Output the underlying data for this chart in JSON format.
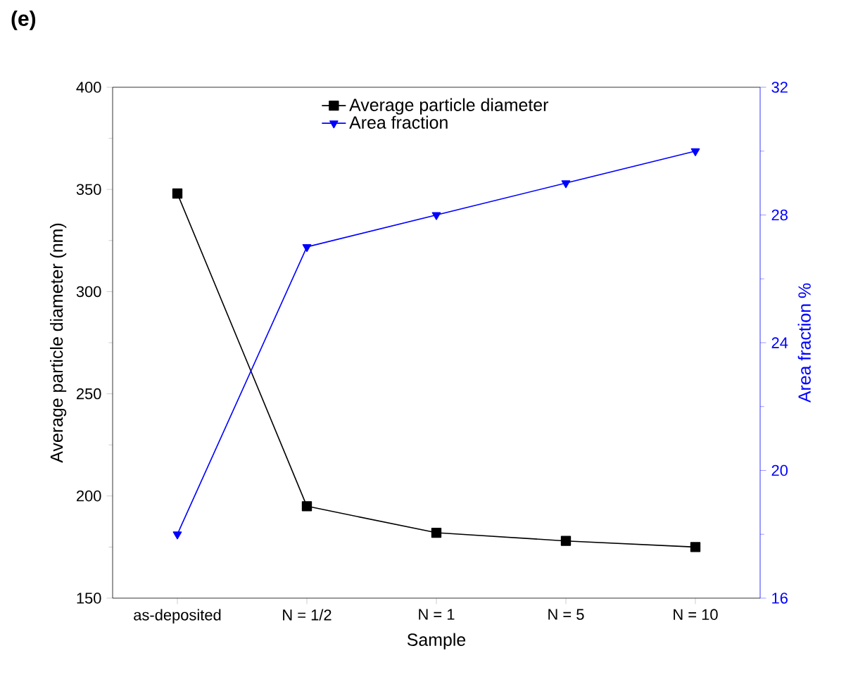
{
  "chart_data": {
    "type": "line",
    "categories": [
      "as-deposited",
      "N = 1/2",
      "N = 1",
      "N = 5",
      "N = 10"
    ],
    "series": [
      {
        "name": "Average particle diameter",
        "color": "#000000",
        "values": [
          348,
          195,
          182,
          178,
          175
        ],
        "marker": "square"
      },
      {
        "name": "Area fraction",
        "color": "#0000ff",
        "values": [
          18,
          27,
          28,
          29,
          30
        ],
        "marker": "triangle down",
        "axis": "y2"
      }
    ],
    "xlabel": "Sample",
    "ylabel": "Average particle diameter (nm)",
    "y2label": "Area fraction %",
    "ylim": [
      150,
      400
    ],
    "yticks": [
      150,
      200,
      250,
      300,
      350,
      400
    ],
    "y2lim": [
      16,
      32
    ],
    "y2ticks": [
      16,
      20,
      24,
      28,
      32
    ],
    "legend": "top",
    "line_style": "solid",
    "annotations": [
      "**(e)**"
    ]
  }
}
